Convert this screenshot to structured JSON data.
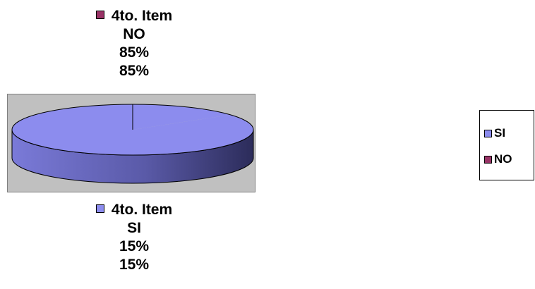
{
  "chart_data": {
    "type": "pie",
    "style": "3d",
    "categories": [
      "SI",
      "NO"
    ],
    "values": [
      15,
      85
    ],
    "percent_labels": [
      "15%",
      "85%"
    ],
    "series_name": "4to. Item",
    "colors": {
      "SI": "#8c8cee",
      "NO": "#993366",
      "plot_background": "#c0c0c0",
      "side_light": "#7a7ad8",
      "side_dark": "#2c2c5a"
    },
    "legend_position": "right",
    "grid": false
  },
  "labels": {
    "no": {
      "series": "4to. Item",
      "category": "NO",
      "value": "85%",
      "percent": "85%"
    },
    "si": {
      "series": "4to. Item",
      "category": "SI",
      "value": "15%",
      "percent": "15%"
    }
  },
  "legend": {
    "items": [
      {
        "label": "SI",
        "color": "#8c8cee"
      },
      {
        "label": "NO",
        "color": "#993366"
      }
    ]
  }
}
